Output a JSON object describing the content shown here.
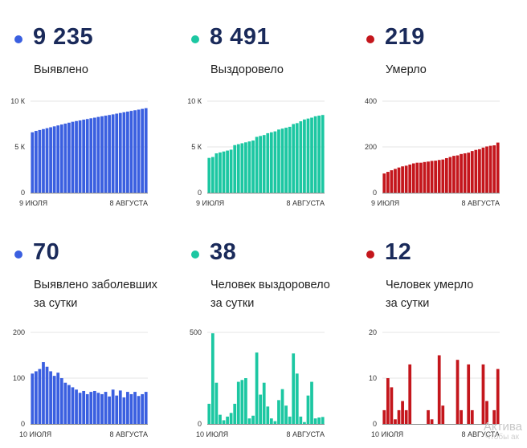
{
  "watermark": {
    "line1": "Актива",
    "line2": "Чтобы ак"
  },
  "panels": [
    {
      "value": "9 235",
      "label_lines": [
        "Выявлено"
      ],
      "color": "#3a5fe0",
      "chart": {
        "type": "bar",
        "xlabels": [
          "9 ИЮЛЯ",
          "8 АВГУСТА"
        ],
        "yticks": [
          {
            "v": 0,
            "t": "0"
          },
          {
            "v": 5000,
            "t": "5 К"
          },
          {
            "v": 10000,
            "t": "10 К"
          }
        ],
        "ymax": 10000,
        "values": [
          6600,
          6750,
          6850,
          6950,
          7050,
          7150,
          7250,
          7350,
          7450,
          7550,
          7650,
          7750,
          7830,
          7900,
          7980,
          8050,
          8130,
          8200,
          8280,
          8350,
          8420,
          8490,
          8560,
          8640,
          8710,
          8790,
          8860,
          8940,
          9010,
          9080,
          9160,
          9235
        ]
      }
    },
    {
      "value": "8 491",
      "label_lines": [
        "Выздоровело"
      ],
      "color": "#1cc7a2",
      "chart": {
        "type": "bar",
        "xlabels": [
          "9 ИЮЛЯ",
          "8 АВГУСТА"
        ],
        "yticks": [
          {
            "v": 0,
            "t": "0"
          },
          {
            "v": 5000,
            "t": "5 К"
          },
          {
            "v": 10000,
            "t": "10 К"
          }
        ],
        "ymax": 10000,
        "values": [
          3800,
          3900,
          4300,
          4400,
          4500,
          4600,
          4700,
          5200,
          5300,
          5400,
          5500,
          5600,
          5700,
          6100,
          6200,
          6300,
          6500,
          6600,
          6700,
          6900,
          7000,
          7100,
          7200,
          7500,
          7600,
          7800,
          8000,
          8100,
          8200,
          8350,
          8420,
          8491
        ]
      }
    },
    {
      "value": "219",
      "label_lines": [
        "Умерло"
      ],
      "color": "#c4161c",
      "chart": {
        "type": "bar",
        "xlabels": [
          "9 ИЮЛЯ",
          "8 АВГУСТА"
        ],
        "yticks": [
          {
            "v": 0,
            "t": "0"
          },
          {
            "v": 200,
            "t": "200"
          },
          {
            "v": 400,
            "t": "400"
          }
        ],
        "ymax": 400,
        "values": [
          84,
          91,
          98,
          104,
          110,
          115,
          118,
          123,
          128,
          131,
          131,
          134,
          136,
          139,
          140,
          143,
          145,
          151,
          156,
          161,
          163,
          169,
          172,
          175,
          182,
          187,
          190,
          197,
          202,
          205,
          207,
          219
        ]
      }
    },
    {
      "value": "70",
      "label_lines": [
        "Выявлено заболевших",
        "за сутки"
      ],
      "color": "#3a5fe0",
      "chart": {
        "type": "bar",
        "xlabels": [
          "10 ИЮЛЯ",
          "8 АВГУСТА"
        ],
        "yticks": [
          {
            "v": 0,
            "t": "0"
          },
          {
            "v": 100,
            "t": "100"
          },
          {
            "v": 200,
            "t": "200"
          }
        ],
        "ymax": 200,
        "values": [
          110,
          115,
          120,
          135,
          125,
          115,
          105,
          112,
          100,
          90,
          85,
          80,
          75,
          68,
          72,
          65,
          70,
          72,
          68,
          65,
          70,
          60,
          75,
          62,
          73,
          58,
          70,
          65,
          70,
          61,
          65,
          70
        ]
      }
    },
    {
      "value": "38",
      "label_lines": [
        "Человек выздоровело",
        "за сутки"
      ],
      "color": "#1cc7a2",
      "chart": {
        "type": "bar",
        "xlabels": [
          "10 ИЮЛЯ",
          "8 АВГУСТА"
        ],
        "yticks": [
          {
            "v": 0,
            "t": "0"
          },
          {
            "v": 500,
            "t": "500"
          }
        ],
        "ymax": 500,
        "values": [
          110,
          495,
          225,
          50,
          20,
          40,
          60,
          110,
          230,
          240,
          250,
          30,
          45,
          390,
          160,
          225,
          95,
          30,
          15,
          130,
          190,
          100,
          40,
          385,
          275,
          40,
          10,
          155,
          230,
          30,
          35,
          38
        ]
      }
    },
    {
      "value": "12",
      "label_lines": [
        "Человек умерло",
        "за сутки"
      ],
      "color": "#c4161c",
      "chart": {
        "type": "bar",
        "xlabels": [
          "10 ИЮЛЯ",
          "8 АВГУСТА"
        ],
        "yticks": [
          {
            "v": 0,
            "t": "0"
          },
          {
            "v": 10,
            "t": "10"
          },
          {
            "v": 20,
            "t": "20"
          }
        ],
        "ymax": 20,
        "values": [
          3,
          10,
          8,
          1,
          3,
          5,
          3,
          13,
          0,
          0,
          0,
          0,
          3,
          1,
          0,
          15,
          4,
          0,
          0,
          0,
          14,
          3,
          0,
          13,
          3,
          0,
          0,
          13,
          5,
          0,
          3,
          12
        ]
      }
    }
  ],
  "chart_data": [
    {
      "type": "bar",
      "title": "Выявлено",
      "categories_range": [
        "9 ИЮЛЯ",
        "8 АВГУСТА"
      ],
      "ylim": [
        0,
        10000
      ],
      "values": [
        6600,
        6750,
        6850,
        6950,
        7050,
        7150,
        7250,
        7350,
        7450,
        7550,
        7650,
        7750,
        7830,
        7900,
        7980,
        8050,
        8130,
        8200,
        8280,
        8350,
        8420,
        8490,
        8560,
        8640,
        8710,
        8790,
        8860,
        8940,
        9010,
        9080,
        9160,
        9235
      ]
    },
    {
      "type": "bar",
      "title": "Выздоровело",
      "categories_range": [
        "9 ИЮЛЯ",
        "8 АВГУСТА"
      ],
      "ylim": [
        0,
        10000
      ],
      "values": [
        3800,
        3900,
        4300,
        4400,
        4500,
        4600,
        4700,
        5200,
        5300,
        5400,
        5500,
        5600,
        5700,
        6100,
        6200,
        6300,
        6500,
        6600,
        6700,
        6900,
        7000,
        7100,
        7200,
        7500,
        7600,
        7800,
        8000,
        8100,
        8200,
        8350,
        8420,
        8491
      ]
    },
    {
      "type": "bar",
      "title": "Умерло",
      "categories_range": [
        "9 ИЮЛЯ",
        "8 АВГУСТА"
      ],
      "ylim": [
        0,
        400
      ],
      "values": [
        84,
        91,
        98,
        104,
        110,
        115,
        118,
        123,
        128,
        131,
        131,
        134,
        136,
        139,
        140,
        143,
        145,
        151,
        156,
        161,
        163,
        169,
        172,
        175,
        182,
        187,
        190,
        197,
        202,
        205,
        207,
        219
      ]
    },
    {
      "type": "bar",
      "title": "Выявлено заболевших за сутки",
      "categories_range": [
        "10 ИЮЛЯ",
        "8 АВГУСТА"
      ],
      "ylim": [
        0,
        200
      ],
      "values": [
        110,
        115,
        120,
        135,
        125,
        115,
        105,
        112,
        100,
        90,
        85,
        80,
        75,
        68,
        72,
        65,
        70,
        72,
        68,
        65,
        70,
        60,
        75,
        62,
        73,
        58,
        70,
        65,
        70,
        61,
        65,
        70
      ]
    },
    {
      "type": "bar",
      "title": "Человек выздоровело за сутки",
      "categories_range": [
        "10 ИЮЛЯ",
        "8 АВГУСТА"
      ],
      "ylim": [
        0,
        500
      ],
      "values": [
        110,
        495,
        225,
        50,
        20,
        40,
        60,
        110,
        230,
        240,
        250,
        30,
        45,
        390,
        160,
        225,
        95,
        30,
        15,
        130,
        190,
        100,
        40,
        385,
        275,
        40,
        10,
        155,
        230,
        30,
        35,
        38
      ]
    },
    {
      "type": "bar",
      "title": "Человек умерло за сутки",
      "categories_range": [
        "10 ИЮЛЯ",
        "8 АВГУСТА"
      ],
      "ylim": [
        0,
        20
      ],
      "values": [
        3,
        10,
        8,
        1,
        3,
        5,
        3,
        13,
        0,
        0,
        0,
        0,
        3,
        1,
        0,
        15,
        4,
        0,
        0,
        0,
        14,
        3,
        0,
        13,
        3,
        0,
        0,
        13,
        5,
        0,
        3,
        12
      ]
    }
  ]
}
